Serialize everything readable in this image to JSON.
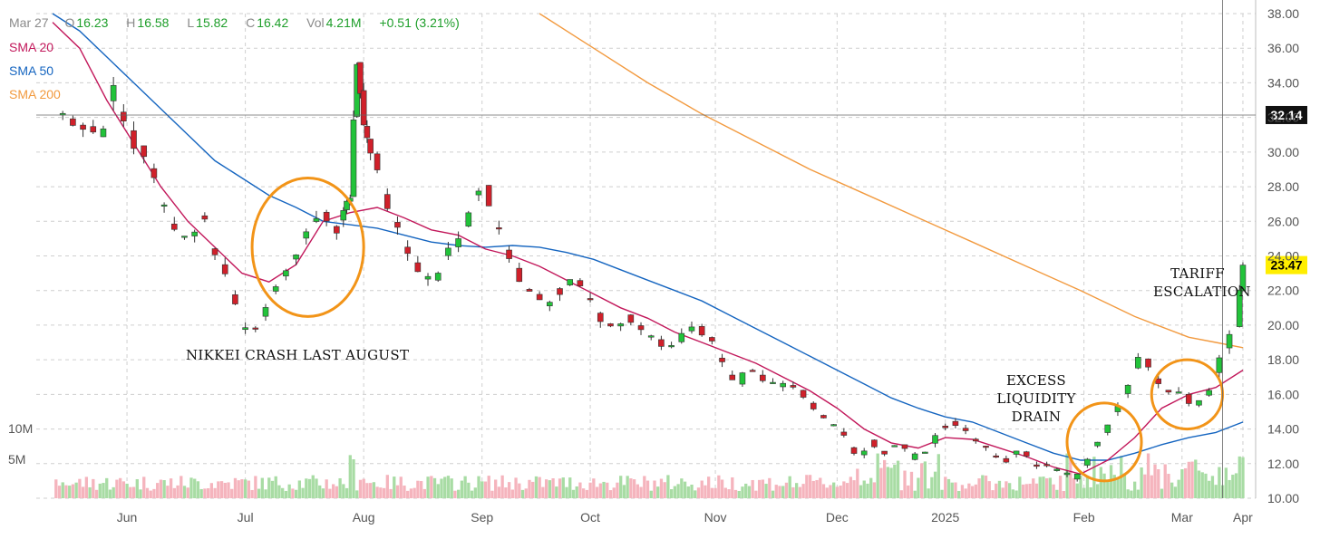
{
  "header": {
    "date": "Mar 27",
    "open_key": "O",
    "open": "16.23",
    "high_key": "H",
    "high": "16.58",
    "low_key": "L",
    "low": "15.82",
    "close_key": "C",
    "close": "16.42",
    "vol_key": "Vol",
    "vol": "4.21M",
    "change": "+0.51 (3.21%)"
  },
  "legend": [
    {
      "name": "SMA 20",
      "color": "#c2185b"
    },
    {
      "name": "SMA 50",
      "color": "#1565c0"
    },
    {
      "name": "SMA 200",
      "color": "#f29a3f"
    }
  ],
  "annotations": {
    "nikkei": "NIKKEI CRASH LAST AUGUST",
    "liquidity": [
      "EXCESS",
      "LIQUIDITY",
      "DRAIN"
    ],
    "tariff": [
      "TARIFF",
      "ESCALATION"
    ]
  },
  "colors": {
    "up": "#22c33a",
    "down": "#d0202a",
    "up_vol": "#a8dca4",
    "down_vol": "#f5b4bd",
    "highlight": "#f29418",
    "grid": "#cfcfcf"
  },
  "chart_data": {
    "type": "candlestick",
    "price_axis": {
      "min": 10,
      "max": 38,
      "ticks": [
        "10.00",
        "12.00",
        "14.00",
        "16.00",
        "18.00",
        "20.00",
        "22.00",
        "24.00",
        "26.00",
        "28.00",
        "30.00",
        "32.00",
        "34.00",
        "36.00",
        "38.00"
      ]
    },
    "volume_axis": {
      "ticks": [
        "5M",
        "10M"
      ]
    },
    "x_labels": [
      "Jun",
      "Jul",
      "Aug",
      "Sep",
      "Oct",
      "Nov",
      "Dec",
      "2025",
      "Feb",
      "Mar",
      "Apr"
    ],
    "crosshair_price": "32.14",
    "last_price": "23.47",
    "anchors": [
      [
        0,
        33.0
      ],
      [
        8,
        31.5
      ],
      [
        14,
        30.8
      ],
      [
        18,
        33.8
      ],
      [
        24,
        30.5
      ],
      [
        28,
        29.8
      ],
      [
        32,
        27.0
      ],
      [
        36,
        25.5
      ],
      [
        40,
        24.8
      ],
      [
        44,
        26.5
      ],
      [
        48,
        24.0
      ],
      [
        52,
        22.5
      ],
      [
        56,
        20.0
      ],
      [
        60,
        19.6
      ],
      [
        64,
        21.5
      ],
      [
        68,
        23.0
      ],
      [
        72,
        24.2
      ],
      [
        76,
        25.4
      ],
      [
        80,
        26.6
      ],
      [
        84,
        25.5
      ],
      [
        88,
        27.5
      ],
      [
        90,
        35.5
      ],
      [
        92,
        31.5
      ],
      [
        96,
        29.0
      ],
      [
        100,
        26.0
      ],
      [
        104,
        24.8
      ],
      [
        108,
        23.0
      ],
      [
        112,
        22.5
      ],
      [
        116,
        24.0
      ],
      [
        120,
        25.0
      ],
      [
        124,
        27.0
      ],
      [
        127,
        28.4
      ],
      [
        130,
        26.5
      ],
      [
        134,
        24.5
      ],
      [
        138,
        22.8
      ],
      [
        142,
        21.5
      ],
      [
        146,
        21.2
      ],
      [
        150,
        22.0
      ],
      [
        154,
        23.0
      ],
      [
        158,
        21.6
      ],
      [
        162,
        20.4
      ],
      [
        166,
        19.8
      ],
      [
        170,
        20.4
      ],
      [
        174,
        19.6
      ],
      [
        178,
        19.0
      ],
      [
        182,
        18.6
      ],
      [
        186,
        19.4
      ],
      [
        190,
        20.1
      ],
      [
        194,
        19.2
      ],
      [
        198,
        17.8
      ],
      [
        202,
        16.5
      ],
      [
        206,
        17.6
      ],
      [
        210,
        16.9
      ],
      [
        214,
        16.4
      ],
      [
        218,
        16.6
      ],
      [
        222,
        16.0
      ],
      [
        226,
        15.0
      ],
      [
        230,
        14.4
      ],
      [
        234,
        13.5
      ],
      [
        238,
        12.4
      ],
      [
        242,
        13.3
      ],
      [
        246,
        12.6
      ],
      [
        250,
        13.2
      ],
      [
        254,
        12.3
      ],
      [
        258,
        12.8
      ],
      [
        262,
        13.8
      ],
      [
        266,
        14.5
      ],
      [
        270,
        13.8
      ],
      [
        274,
        13.1
      ],
      [
        278,
        12.5
      ],
      [
        282,
        12.2
      ],
      [
        286,
        12.8
      ],
      [
        290,
        12.0
      ],
      [
        294,
        11.8
      ],
      [
        298,
        11.5
      ],
      [
        302,
        11.2
      ],
      [
        306,
        12.3
      ],
      [
        310,
        13.5
      ],
      [
        314,
        15.0
      ],
      [
        318,
        16.5
      ],
      [
        322,
        18.6
      ],
      [
        326,
        17.0
      ],
      [
        330,
        16.3
      ],
      [
        334,
        16.0
      ],
      [
        338,
        15.2
      ],
      [
        342,
        16.2
      ],
      [
        345,
        18.2
      ],
      [
        348,
        19.4
      ],
      [
        350,
        20.1
      ],
      [
        352,
        23.47
      ]
    ],
    "sma20": [
      [
        0,
        37.5
      ],
      [
        8,
        36.0
      ],
      [
        16,
        33.0
      ],
      [
        24,
        30.5
      ],
      [
        32,
        28.0
      ],
      [
        40,
        26.0
      ],
      [
        48,
        24.5
      ],
      [
        56,
        23.0
      ],
      [
        64,
        22.5
      ],
      [
        72,
        23.5
      ],
      [
        80,
        26.0
      ],
      [
        88,
        26.5
      ],
      [
        96,
        26.8
      ],
      [
        104,
        26.2
      ],
      [
        112,
        25.5
      ],
      [
        120,
        25.2
      ],
      [
        128,
        24.4
      ],
      [
        136,
        24.0
      ],
      [
        144,
        23.4
      ],
      [
        152,
        22.6
      ],
      [
        160,
        21.8
      ],
      [
        168,
        21.0
      ],
      [
        176,
        20.4
      ],
      [
        184,
        19.6
      ],
      [
        192,
        19.0
      ],
      [
        200,
        18.4
      ],
      [
        208,
        17.8
      ],
      [
        216,
        17.0
      ],
      [
        224,
        16.2
      ],
      [
        232,
        15.2
      ],
      [
        240,
        14.0
      ],
      [
        248,
        13.2
      ],
      [
        256,
        12.9
      ],
      [
        264,
        13.5
      ],
      [
        272,
        13.4
      ],
      [
        280,
        12.9
      ],
      [
        288,
        12.4
      ],
      [
        296,
        11.8
      ],
      [
        304,
        11.4
      ],
      [
        312,
        12.2
      ],
      [
        320,
        13.5
      ],
      [
        328,
        15.2
      ],
      [
        336,
        16.0
      ],
      [
        344,
        16.4
      ],
      [
        352,
        17.4
      ]
    ],
    "sma50": [
      [
        0,
        38.0
      ],
      [
        8,
        37.0
      ],
      [
        16,
        35.5
      ],
      [
        24,
        34.0
      ],
      [
        32,
        32.5
      ],
      [
        40,
        31.0
      ],
      [
        48,
        29.5
      ],
      [
        56,
        28.5
      ],
      [
        64,
        27.5
      ],
      [
        72,
        26.8
      ],
      [
        80,
        26.0
      ],
      [
        88,
        25.8
      ],
      [
        96,
        25.6
      ],
      [
        104,
        25.2
      ],
      [
        112,
        24.8
      ],
      [
        120,
        24.6
      ],
      [
        128,
        24.5
      ],
      [
        136,
        24.6
      ],
      [
        144,
        24.5
      ],
      [
        152,
        24.2
      ],
      [
        160,
        23.8
      ],
      [
        168,
        23.2
      ],
      [
        176,
        22.6
      ],
      [
        184,
        22.0
      ],
      [
        192,
        21.4
      ],
      [
        200,
        20.6
      ],
      [
        208,
        19.8
      ],
      [
        216,
        19.0
      ],
      [
        224,
        18.2
      ],
      [
        232,
        17.4
      ],
      [
        240,
        16.6
      ],
      [
        248,
        15.8
      ],
      [
        256,
        15.2
      ],
      [
        264,
        14.7
      ],
      [
        272,
        14.4
      ],
      [
        280,
        13.8
      ],
      [
        288,
        13.2
      ],
      [
        296,
        12.6
      ],
      [
        304,
        12.2
      ],
      [
        312,
        12.2
      ],
      [
        320,
        12.6
      ],
      [
        328,
        13.1
      ],
      [
        336,
        13.5
      ],
      [
        344,
        13.8
      ],
      [
        352,
        14.4
      ]
    ],
    "sma200": [
      [
        144,
        38.0
      ],
      [
        160,
        36.0
      ],
      [
        176,
        34.0
      ],
      [
        192,
        32.2
      ],
      [
        208,
        30.6
      ],
      [
        224,
        29.0
      ],
      [
        240,
        27.6
      ],
      [
        256,
        26.2
      ],
      [
        272,
        24.8
      ],
      [
        288,
        23.4
      ],
      [
        304,
        22.0
      ],
      [
        320,
        20.5
      ],
      [
        336,
        19.3
      ],
      [
        344,
        19.0
      ],
      [
        352,
        18.7
      ]
    ],
    "highlights": [
      {
        "label": "nikkei crash",
        "x_range": [
          59,
          92
        ],
        "y_range": [
          20.5,
          28.5
        ]
      },
      {
        "label": "excess liquidity drain",
        "x_range": [
          300,
          322
        ],
        "y_range": [
          11.0,
          15.5
        ]
      },
      {
        "label": "tariff escalation",
        "x_range": [
          325,
          346
        ],
        "y_range": [
          14.0,
          18.0
        ]
      }
    ]
  }
}
